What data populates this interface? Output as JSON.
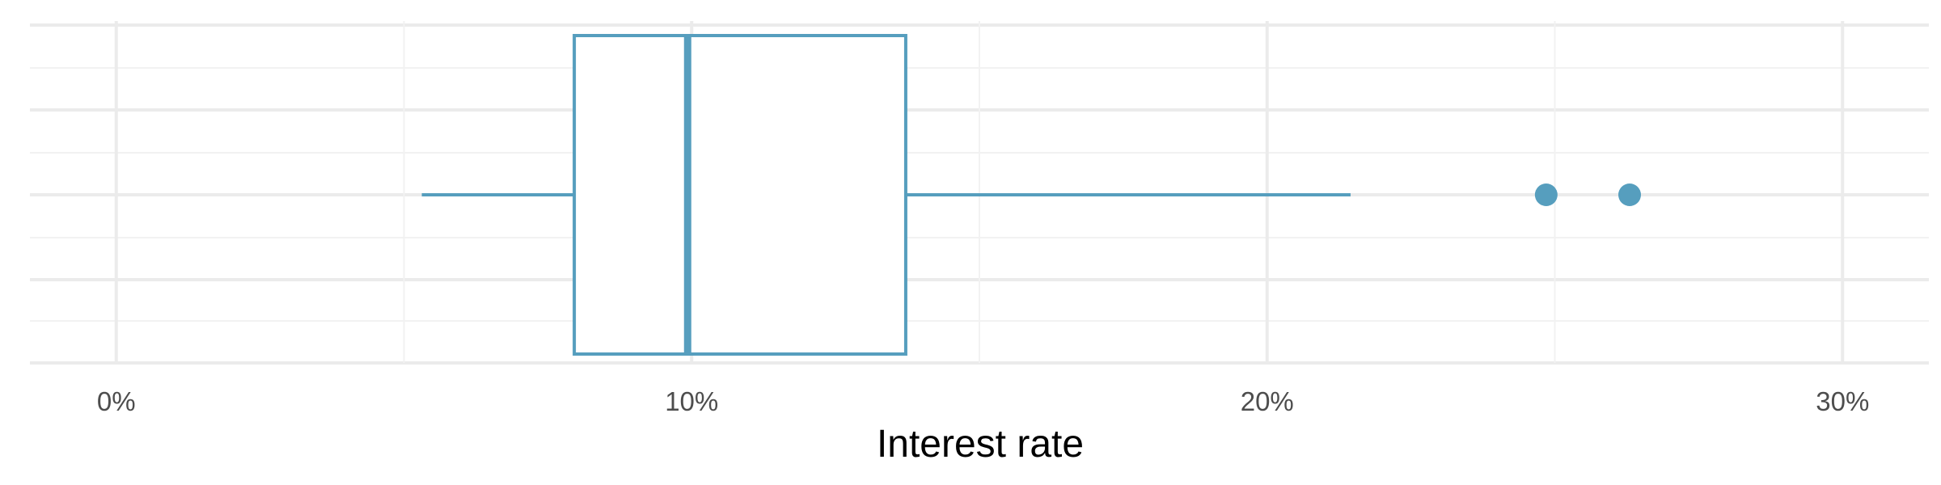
{
  "chart_data": {
    "type": "boxplot",
    "title": "",
    "xlabel": "Interest rate",
    "ylabel": "",
    "xlim": [
      -1.5,
      31.5
    ],
    "x_ticks": [
      0,
      10,
      20,
      30
    ],
    "x_tick_labels": [
      "0%",
      "10%",
      "20%",
      "30%"
    ],
    "x_minor_ticks": [
      5,
      15,
      25
    ],
    "grid": true,
    "box": {
      "whisker_low": 5.31,
      "q1": 7.96,
      "median": 9.93,
      "q3": 13.72,
      "whisker_high": 21.45,
      "outliers": [
        24.85,
        26.3
      ]
    },
    "colors": {
      "box_stroke": "#569EBE",
      "outlier_fill": "#569EBE",
      "grid_major": "#EBEBEB",
      "grid_minor": "#F2F2F2",
      "tick_text": "#4D4D4D"
    }
  }
}
